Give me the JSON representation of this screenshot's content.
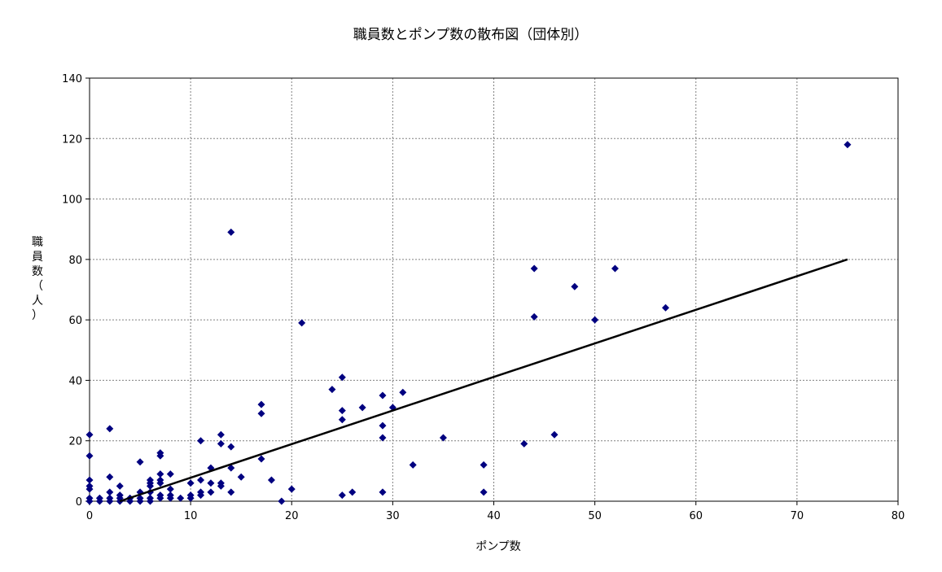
{
  "chart_data": {
    "type": "scatter",
    "title": "職員数とポンプ数の散布図（団体別）",
    "xlabel": "ポンプ数",
    "ylabel": "職員数（人）",
    "xlim": [
      0,
      80
    ],
    "ylim": [
      0,
      140
    ],
    "x_ticks": [
      0,
      10,
      20,
      30,
      40,
      50,
      60,
      70,
      80
    ],
    "y_ticks": [
      0,
      20,
      40,
      60,
      80,
      100,
      120,
      140
    ],
    "grid": true,
    "legend": "none",
    "marker": "diamond",
    "colors": {
      "points": "#000080",
      "trend": "#000000",
      "grid": "#808080"
    },
    "points": [
      [
        0,
        0
      ],
      [
        0,
        1
      ],
      [
        0,
        4
      ],
      [
        0,
        5
      ],
      [
        0,
        7
      ],
      [
        0,
        15
      ],
      [
        0,
        22
      ],
      [
        1,
        0
      ],
      [
        1,
        1
      ],
      [
        2,
        0
      ],
      [
        2,
        1
      ],
      [
        2,
        3
      ],
      [
        2,
        8
      ],
      [
        2,
        24
      ],
      [
        3,
        0
      ],
      [
        3,
        1
      ],
      [
        3,
        2
      ],
      [
        3,
        5
      ],
      [
        4,
        0
      ],
      [
        4,
        1
      ],
      [
        5,
        0
      ],
      [
        5,
        1
      ],
      [
        5,
        3
      ],
      [
        5,
        13
      ],
      [
        6,
        0
      ],
      [
        6,
        1
      ],
      [
        6,
        3
      ],
      [
        6,
        5
      ],
      [
        6,
        6
      ],
      [
        6,
        7
      ],
      [
        7,
        1
      ],
      [
        7,
        2
      ],
      [
        7,
        6
      ],
      [
        7,
        7
      ],
      [
        7,
        9
      ],
      [
        7,
        15
      ],
      [
        7,
        16
      ],
      [
        8,
        1
      ],
      [
        8,
        2
      ],
      [
        8,
        4
      ],
      [
        8,
        9
      ],
      [
        9,
        1
      ],
      [
        10,
        1
      ],
      [
        10,
        2
      ],
      [
        10,
        6
      ],
      [
        11,
        2
      ],
      [
        11,
        3
      ],
      [
        11,
        7
      ],
      [
        11,
        20
      ],
      [
        12,
        3
      ],
      [
        12,
        6
      ],
      [
        12,
        11
      ],
      [
        13,
        5
      ],
      [
        13,
        6
      ],
      [
        13,
        19
      ],
      [
        13,
        22
      ],
      [
        14,
        3
      ],
      [
        14,
        11
      ],
      [
        14,
        18
      ],
      [
        14,
        89
      ],
      [
        15,
        8
      ],
      [
        17,
        14
      ],
      [
        17,
        29
      ],
      [
        17,
        32
      ],
      [
        18,
        7
      ],
      [
        19,
        0
      ],
      [
        20,
        4
      ],
      [
        21,
        59
      ],
      [
        24,
        37
      ],
      [
        25,
        2
      ],
      [
        25,
        27
      ],
      [
        25,
        30
      ],
      [
        25,
        41
      ],
      [
        26,
        3
      ],
      [
        27,
        31
      ],
      [
        29,
        3
      ],
      [
        29,
        21
      ],
      [
        29,
        25
      ],
      [
        29,
        35
      ],
      [
        30,
        31
      ],
      [
        31,
        36
      ],
      [
        32,
        12
      ],
      [
        35,
        21
      ],
      [
        39,
        3
      ],
      [
        39,
        12
      ],
      [
        43,
        19
      ],
      [
        44,
        61
      ],
      [
        44,
        77
      ],
      [
        46,
        22
      ],
      [
        48,
        71
      ],
      [
        50,
        60
      ],
      [
        52,
        77
      ],
      [
        57,
        64
      ],
      [
        75,
        118
      ]
    ],
    "trendline": {
      "from": [
        3,
        0
      ],
      "to": [
        75,
        80
      ]
    }
  }
}
